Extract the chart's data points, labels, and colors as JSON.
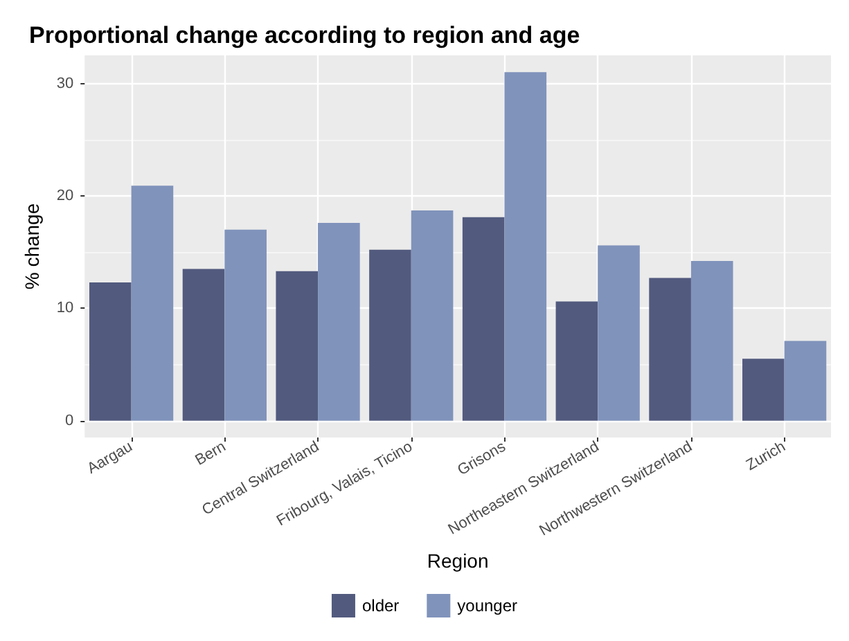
{
  "chart_data": {
    "type": "bar",
    "title": "Proportional change according to region and age",
    "xlabel": "Region",
    "ylabel": "% change",
    "categories": [
      "Aargau",
      "Bern",
      "Central Switzerland",
      "Fribourg, Valais, Ticino",
      "Grisons",
      "Northeastern Switzerland",
      "Northwestern Switzerland",
      "Zurich"
    ],
    "series": [
      {
        "name": "older",
        "color": "#525a7e",
        "values": [
          12.3,
          13.5,
          13.3,
          15.2,
          18.1,
          10.6,
          12.7,
          5.5
        ]
      },
      {
        "name": "younger",
        "color": "#8093bb",
        "values": [
          20.9,
          17.0,
          17.6,
          18.7,
          31.0,
          15.6,
          14.2,
          7.1
        ]
      }
    ],
    "ylim": [
      -1.5,
      32.5
    ],
    "yticks": [
      0,
      10,
      20,
      30
    ],
    "grid": true,
    "legend": "bottom"
  }
}
